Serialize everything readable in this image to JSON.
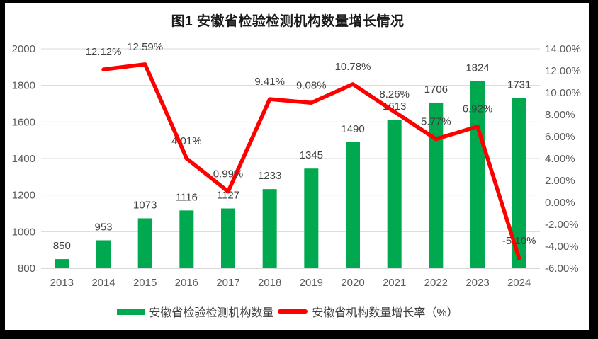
{
  "title": "图1 安徽省检验检测机构数量增长情况",
  "colors": {
    "bar_green": "#00A94F",
    "line_red": "#FF0000",
    "grid": "#D9D9D9",
    "axis_line": "#D9D9D9",
    "tick_text": "#595959",
    "label_text": "#404040",
    "background": "#FFFFFF",
    "frame_border": "#000000"
  },
  "chart_data": {
    "type": "combo-bar-line",
    "categories": [
      "2013",
      "2014",
      "2015",
      "2016",
      "2017",
      "2018",
      "2019",
      "2020",
      "2021",
      "2022",
      "2023",
      "2024"
    ],
    "series": [
      {
        "name": "安徽省检验检测机构数量",
        "type": "bar",
        "axis": "left",
        "color": "#00A94F",
        "values": [
          850,
          953,
          1073,
          1116,
          1127,
          1233,
          1345,
          1490,
          1613,
          1706,
          1824,
          1731
        ],
        "labels": [
          "850",
          "953",
          "1073",
          "1116",
          "1127",
          "1233",
          "1345",
          "1490",
          "1613",
          "1706",
          "1824",
          "1731"
        ]
      },
      {
        "name": "安徽省机构数量增长率（%）",
        "type": "line",
        "axis": "right",
        "color": "#FF0000",
        "values": [
          null,
          12.12,
          12.59,
          4.01,
          0.99,
          9.41,
          9.08,
          10.78,
          8.26,
          5.77,
          6.92,
          -5.1
        ],
        "labels": [
          "",
          "12.12%",
          "12.59%",
          "4.01%",
          "0.99%",
          "9.41%",
          "9.08%",
          "10.78%",
          "8.26%",
          "5.77%",
          "6.92%",
          "-5.10%"
        ]
      }
    ],
    "left_axis": {
      "min": 800,
      "max": 2000,
      "step": 200,
      "tick_labels": [
        "800",
        "1000",
        "1200",
        "1400",
        "1600",
        "1800",
        "2000"
      ]
    },
    "right_axis": {
      "min": -6,
      "max": 14,
      "step": 2,
      "tick_labels": [
        "-6.00%",
        "-4.00%",
        "-2.00%",
        "0.00%",
        "2.00%",
        "4.00%",
        "6.00%",
        "8.00%",
        "10.00%",
        "12.00%",
        "14.00%"
      ]
    },
    "grid": true,
    "legend_position": "bottom"
  },
  "legend": [
    {
      "label": "安徽省检验检测机构数量",
      "type": "bar",
      "color": "#00A94F"
    },
    {
      "label": "安徽省机构数量增长率（%）",
      "type": "line",
      "color": "#FF0000"
    }
  ]
}
